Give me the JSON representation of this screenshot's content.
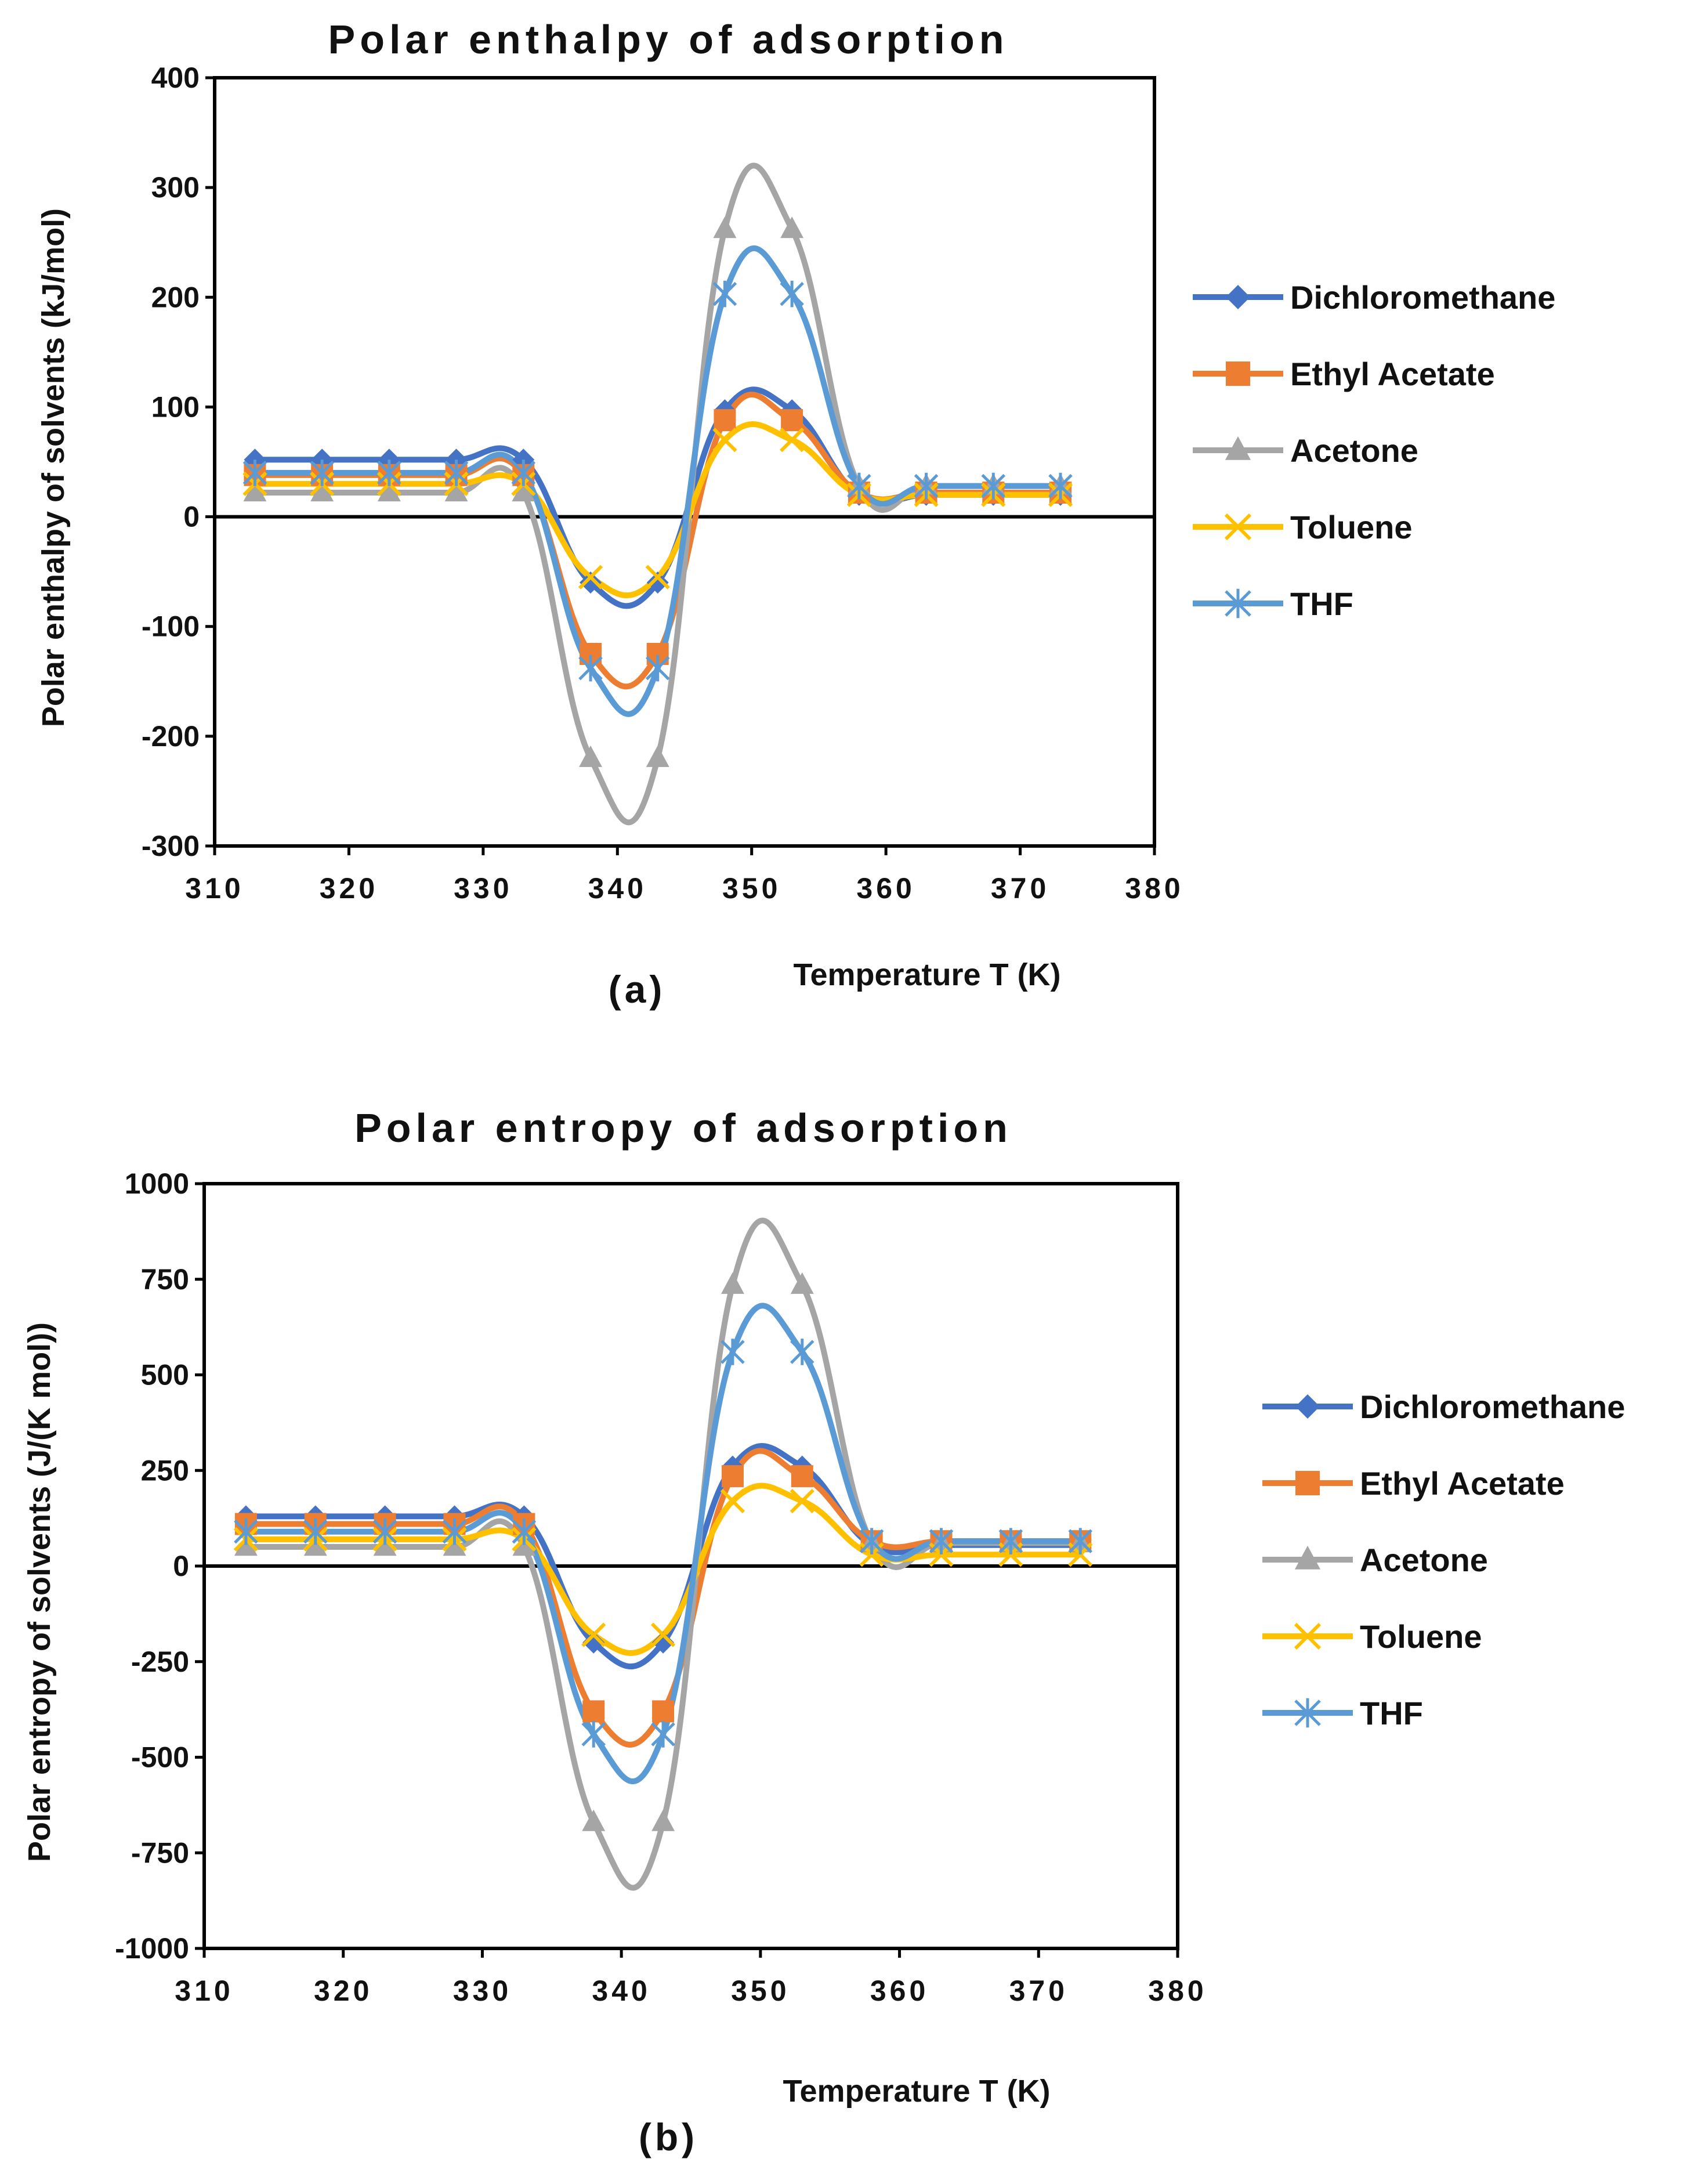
{
  "chart_data": [
    {
      "type": "line",
      "panel_label": "(a)",
      "title": "Polar enthalpy of adsorption",
      "xlabel": "Temperature T (K)",
      "ylabel": "Polar enthalpy of solvents (kJ/mol)",
      "xlim": [
        310,
        380
      ],
      "ylim": [
        -300,
        400
      ],
      "xticks": [
        310,
        320,
        330,
        340,
        350,
        360,
        370,
        380
      ],
      "yticks": [
        -300,
        -200,
        -100,
        0,
        100,
        200,
        300,
        400
      ],
      "x": [
        313,
        318,
        323,
        328,
        333,
        338,
        343,
        348,
        353,
        358,
        363,
        368,
        373
      ],
      "legend_position": "right",
      "smoothed": true,
      "series": [
        {
          "name": "Dichloromethane",
          "color": "#4472C4",
          "marker": "diamond",
          "values": [
            52,
            52,
            52,
            52,
            52,
            -60,
            -60,
            97,
            97,
            20,
            20,
            20,
            20
          ]
        },
        {
          "name": "Ethyl Acetate",
          "color": "#ED7D31",
          "marker": "square",
          "values": [
            38,
            38,
            38,
            38,
            38,
            -125,
            -125,
            88,
            88,
            22,
            22,
            22,
            22
          ]
        },
        {
          "name": "Acetone",
          "color": "#A5A5A5",
          "marker": "triangle",
          "values": [
            22,
            22,
            22,
            22,
            22,
            -220,
            -220,
            262,
            262,
            28,
            28,
            28,
            28
          ]
        },
        {
          "name": "Toluene",
          "color": "#FFC000",
          "marker": "x",
          "values": [
            30,
            30,
            30,
            30,
            30,
            -55,
            -55,
            70,
            70,
            20,
            20,
            20,
            20
          ]
        },
        {
          "name": "THF",
          "color": "#5B9BD5",
          "marker": "star",
          "values": [
            40,
            40,
            40,
            40,
            40,
            -138,
            -138,
            203,
            203,
            28,
            28,
            28,
            28
          ]
        }
      ]
    },
    {
      "type": "line",
      "panel_label": "(b)",
      "title": "Polar entropy of adsorption",
      "xlabel": "Temperature T (K)",
      "ylabel": "Polar entropy of solvents (J/(K mol))",
      "xlim": [
        310,
        380
      ],
      "ylim": [
        -1000,
        1000
      ],
      "xticks": [
        310,
        320,
        330,
        340,
        350,
        360,
        370,
        380
      ],
      "yticks": [
        -1000,
        -750,
        -500,
        -250,
        0,
        250,
        500,
        750,
        1000
      ],
      "x": [
        313,
        318,
        323,
        328,
        333,
        338,
        343,
        348,
        353,
        358,
        363,
        368,
        373
      ],
      "legend_position": "right",
      "smoothed": true,
      "series": [
        {
          "name": "Dichloromethane",
          "color": "#4472C4",
          "marker": "diamond",
          "values": [
            130,
            130,
            130,
            130,
            130,
            -200,
            -200,
            260,
            260,
            55,
            55,
            55,
            55
          ]
        },
        {
          "name": "Ethyl Acetate",
          "color": "#ED7D31",
          "marker": "square",
          "values": [
            110,
            110,
            110,
            110,
            110,
            -380,
            -380,
            235,
            235,
            65,
            65,
            65,
            65
          ]
        },
        {
          "name": "Acetone",
          "color": "#A5A5A5",
          "marker": "triangle",
          "values": [
            50,
            50,
            50,
            50,
            50,
            -670,
            -670,
            735,
            735,
            60,
            60,
            60,
            60
          ]
        },
        {
          "name": "Toluene",
          "color": "#FFC000",
          "marker": "x",
          "values": [
            70,
            70,
            70,
            70,
            70,
            -180,
            -180,
            170,
            170,
            30,
            30,
            30,
            30
          ]
        },
        {
          "name": "THF",
          "color": "#5B9BD5",
          "marker": "star",
          "values": [
            90,
            90,
            90,
            90,
            90,
            -440,
            -440,
            560,
            560,
            65,
            65,
            65,
            65
          ]
        }
      ]
    }
  ]
}
